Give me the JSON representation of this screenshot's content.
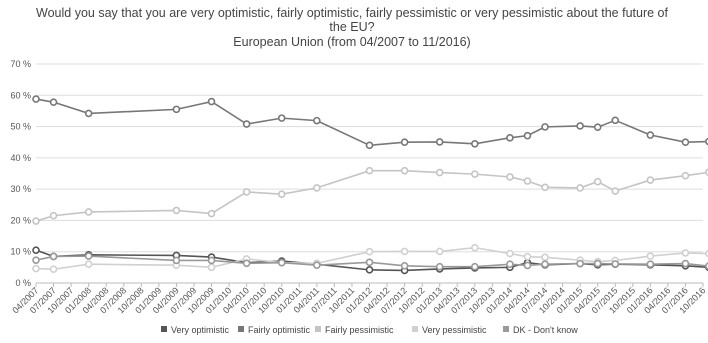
{
  "chart_data": {
    "type": "line",
    "title_lines": [
      "Would you say that you are very optimistic, fairly optimistic, fairly pessimistic or very pessimistic about the future of",
      "the EU?",
      "European Union (from 04/2007 to 11/2016)"
    ],
    "y_ticks": [
      "0 %",
      "10 %",
      "20 %",
      "30 %",
      "40 %",
      "50 %",
      "60 %",
      "70 %"
    ],
    "ylim": [
      0,
      70
    ],
    "grid": true,
    "legend_position": "bottom",
    "x_categories": [
      "04/2007",
      "07/2007",
      "10/2007",
      "01/2008",
      "04/2008",
      "07/2008",
      "10/2008",
      "01/2009",
      "04/2009",
      "07/2009",
      "10/2009",
      "01/2010",
      "04/2010",
      "07/2010",
      "10/2010",
      "01/2011",
      "04/2011",
      "07/2011",
      "10/2011",
      "01/2012",
      "04/2012",
      "07/2012",
      "10/2012",
      "01/2013",
      "04/2013",
      "07/2013",
      "10/2013",
      "01/2014",
      "04/2014",
      "07/2014",
      "10/2014",
      "01/2015",
      "04/2015",
      "07/2015",
      "10/2015",
      "01/2016",
      "04/2016",
      "07/2016",
      "10/2016"
    ],
    "series": [
      {
        "name": "Very optimistic",
        "color": "#555555",
        "points": [
          [
            "04/2007",
            10.5
          ],
          [
            "07/2007",
            8.5
          ],
          [
            "01/2008",
            9.0
          ],
          [
            "04/2009",
            8.8
          ],
          [
            "10/2009",
            8.3
          ],
          [
            "04/2010",
            6.5
          ],
          [
            "10/2010",
            7.0
          ],
          [
            "04/2011",
            6.0
          ],
          [
            "01/2012",
            4.2
          ],
          [
            "07/2012",
            4.0
          ],
          [
            "01/2013",
            4.5
          ],
          [
            "07/2013",
            4.8
          ],
          [
            "01/2014",
            5.0
          ],
          [
            "04/2014",
            6.5
          ],
          [
            "07/2014",
            5.8
          ],
          [
            "01/2015",
            6.2
          ],
          [
            "04/2015",
            5.8
          ],
          [
            "07/2015",
            6.0
          ],
          [
            "01/2016",
            5.8
          ],
          [
            "07/2016",
            5.5
          ],
          [
            "11/2016",
            5.0
          ]
        ]
      },
      {
        "name": "Fairly optimistic",
        "color": "#777777",
        "points": [
          [
            "04/2007",
            58.8
          ],
          [
            "07/2007",
            57.8
          ],
          [
            "01/2008",
            54.2
          ],
          [
            "04/2009",
            55.5
          ],
          [
            "10/2009",
            58.0
          ],
          [
            "04/2010",
            50.8
          ],
          [
            "10/2010",
            52.7
          ],
          [
            "04/2011",
            51.9
          ],
          [
            "01/2012",
            44.0
          ],
          [
            "07/2012",
            45.0
          ],
          [
            "01/2013",
            45.1
          ],
          [
            "07/2013",
            44.5
          ],
          [
            "01/2014",
            46.4
          ],
          [
            "04/2014",
            47.1
          ],
          [
            "07/2014",
            49.9
          ],
          [
            "01/2015",
            50.2
          ],
          [
            "04/2015",
            49.8
          ],
          [
            "07/2015",
            52.0
          ],
          [
            "01/2016",
            47.3
          ],
          [
            "07/2016",
            45.0
          ],
          [
            "11/2016",
            45.2
          ]
        ]
      },
      {
        "name": "Fairly pessimistic",
        "color": "#c4c4c4",
        "points": [
          [
            "04/2007",
            19.8
          ],
          [
            "07/2007",
            21.5
          ],
          [
            "01/2008",
            22.7
          ],
          [
            "04/2009",
            23.2
          ],
          [
            "10/2009",
            22.2
          ],
          [
            "04/2010",
            29.1
          ],
          [
            "10/2010",
            28.4
          ],
          [
            "04/2011",
            30.4
          ],
          [
            "01/2012",
            35.9
          ],
          [
            "07/2012",
            35.9
          ],
          [
            "01/2013",
            35.3
          ],
          [
            "07/2013",
            34.8
          ],
          [
            "01/2014",
            33.9
          ],
          [
            "04/2014",
            32.6
          ],
          [
            "07/2014",
            30.6
          ],
          [
            "01/2015",
            30.4
          ],
          [
            "04/2015",
            32.4
          ],
          [
            "07/2015",
            29.4
          ],
          [
            "01/2016",
            32.9
          ],
          [
            "07/2016",
            34.3
          ],
          [
            "11/2016",
            35.4
          ]
        ]
      },
      {
        "name": "Very pessimistic",
        "color": "#d0d0d0",
        "points": [
          [
            "04/2007",
            4.6
          ],
          [
            "07/2007",
            4.4
          ],
          [
            "01/2008",
            6.0
          ],
          [
            "04/2009",
            5.7
          ],
          [
            "10/2009",
            5.0
          ],
          [
            "04/2010",
            7.7
          ],
          [
            "10/2010",
            6.5
          ],
          [
            "04/2011",
            6.3
          ],
          [
            "01/2012",
            10.0
          ],
          [
            "07/2012",
            10.1
          ],
          [
            "01/2013",
            10.1
          ],
          [
            "07/2013",
            11.3
          ],
          [
            "01/2014",
            9.4
          ],
          [
            "04/2014",
            8.4
          ],
          [
            "07/2014",
            8.2
          ],
          [
            "01/2015",
            7.3
          ],
          [
            "04/2015",
            6.8
          ],
          [
            "07/2015",
            7.2
          ],
          [
            "01/2016",
            8.6
          ],
          [
            "07/2016",
            9.6
          ],
          [
            "11/2016",
            9.4
          ]
        ]
      },
      {
        "name": "DK - Don't know",
        "color": "#999999",
        "points": [
          [
            "04/2007",
            7.3
          ],
          [
            "07/2007",
            8.5
          ],
          [
            "01/2008",
            8.6
          ],
          [
            "04/2009",
            7.2
          ],
          [
            "10/2009",
            7.2
          ],
          [
            "04/2010",
            6.3
          ],
          [
            "10/2010",
            6.5
          ],
          [
            "04/2011",
            5.7
          ],
          [
            "01/2012",
            6.6
          ],
          [
            "07/2012",
            5.5
          ],
          [
            "01/2013",
            5.2
          ],
          [
            "07/2013",
            5.2
          ],
          [
            "01/2014",
            6.0
          ],
          [
            "04/2014",
            5.6
          ],
          [
            "07/2014",
            6.0
          ],
          [
            "01/2015",
            6.2
          ],
          [
            "04/2015",
            6.2
          ],
          [
            "07/2015",
            6.1
          ],
          [
            "01/2016",
            6.0
          ],
          [
            "07/2016",
            6.2
          ],
          [
            "11/2016",
            5.4
          ]
        ]
      }
    ]
  }
}
